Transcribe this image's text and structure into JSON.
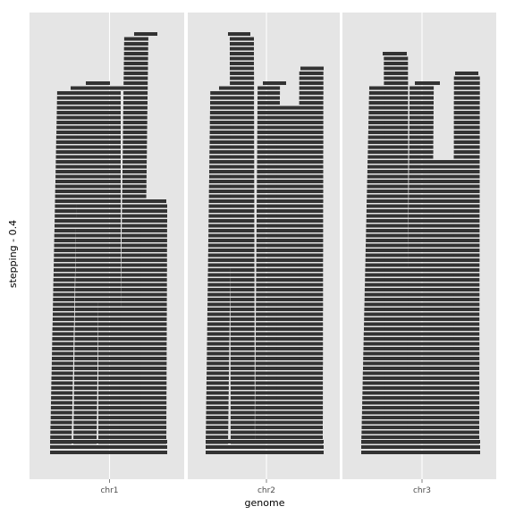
{
  "chart_data": {
    "type": "stacked-segments",
    "xlabel": "genome",
    "ylabel": "stepping - 0.4",
    "categories": [
      "chr1",
      "chr2",
      "chr3"
    ],
    "yticks": [],
    "grid": true,
    "legend": "none",
    "colors": {
      "panel": "#e5e5e5",
      "grid": "#ffffff",
      "segment": "#333333",
      "tick_text": "#4d4d4d"
    },
    "panels": [
      {
        "name": "chr1",
        "columns": [
          {
            "x": [
              56,
              80
            ],
            "base_top": 500,
            "base_bottom": 63,
            "top": 95,
            "top_x": [
              79,
              108
            ],
            "extra": []
          },
          {
            "x": [
              82,
              108
            ],
            "base_top": 500,
            "base_bottom": 88,
            "top": 88,
            "top_x": [
              96,
              123
            ],
            "extra": []
          },
          {
            "x": [
              110,
              135
            ],
            "base_top": 500,
            "base_bottom": 95,
            "top": 95,
            "top_x": [
              110,
              140
            ],
            "extra": []
          },
          {
            "x": [
              133,
              160
            ],
            "base_top": 500,
            "base_bottom": 38,
            "top": 38,
            "top_x": [
              150,
              176
            ],
            "extra": []
          },
          {
            "x": [
              157,
              186
            ],
            "base_top": 500,
            "base_bottom": 225,
            "top": 225,
            "top_x": [
              160,
              186
            ],
            "extra": []
          }
        ],
        "bottom_span": [
          56,
          187
        ]
      },
      {
        "name": "chr2",
        "columns": [
          {
            "x": [
              230,
              255
            ],
            "base_top": 500,
            "base_bottom": 95,
            "top": 95,
            "top_x": [
              245,
              275
            ],
            "extra": []
          },
          {
            "x": [
              258,
              285
            ],
            "base_top": 500,
            "base_bottom": 38,
            "top": 38,
            "top_x": [
              255,
              280
            ],
            "extra": []
          },
          {
            "x": [
              285,
              310
            ],
            "base_top": 500,
            "base_bottom": 88,
            "top": 88,
            "top_x": [
              294,
              320
            ],
            "extra": []
          },
          {
            "x": [
              309,
              337
            ],
            "base_top": 500,
            "base_bottom": 118,
            "top": 118,
            "top_x": [
              312,
              340
            ],
            "extra": []
          },
          {
            "x": [
              334,
              361
            ],
            "base_top": 500,
            "base_bottom": 73,
            "top": 73,
            "top_x": [
              336,
              362
            ],
            "extra": []
          }
        ],
        "bottom_span": [
          230,
          362
        ]
      },
      {
        "name": "chr3",
        "columns": [
          {
            "x": [
              404,
              432
            ],
            "base_top": 500,
            "base_bottom": 88,
            "top": 88,
            "top_x": [
              430,
              456
            ],
            "extra": []
          },
          {
            "x": [
              430,
              457
            ],
            "base_top": 500,
            "base_bottom": 58,
            "top": 58,
            "top_x": [
              428,
              455
            ],
            "extra": []
          },
          {
            "x": [
              455,
              482
            ],
            "base_top": 500,
            "base_bottom": 88,
            "top": 88,
            "top_x": [
              464,
              492
            ],
            "extra": []
          },
          {
            "x": [
              480,
              508
            ],
            "base_top": 500,
            "base_bottom": 180,
            "top": 180,
            "top_x": [
              482,
              508
            ],
            "extra": []
          },
          {
            "x": [
              507,
              536
            ],
            "base_top": 500,
            "base_bottom": 78,
            "top": 78,
            "top_x": [
              509,
              535
            ],
            "extra": []
          }
        ],
        "bottom_span": [
          404,
          537
        ]
      }
    ]
  }
}
